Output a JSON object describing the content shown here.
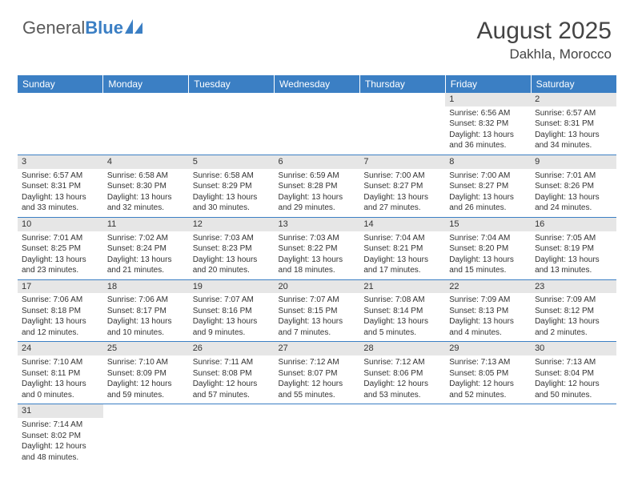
{
  "logo": {
    "text1": "General",
    "text2": "Blue",
    "sail_color": "#3b7fc4",
    "text_color": "#5a5a5a"
  },
  "title": "August 2025",
  "location": "Dakhla, Morocco",
  "colors": {
    "header_bg": "#3b7fc4",
    "header_text": "#ffffff",
    "daynum_bg": "#e6e6e6",
    "border": "#3b7fc4",
    "body_text": "#333333"
  },
  "day_headers": [
    "Sunday",
    "Monday",
    "Tuesday",
    "Wednesday",
    "Thursday",
    "Friday",
    "Saturday"
  ],
  "weeks": [
    [
      null,
      null,
      null,
      null,
      null,
      {
        "n": "1",
        "sr": "Sunrise: 6:56 AM",
        "ss": "Sunset: 8:32 PM",
        "d1": "Daylight: 13 hours",
        "d2": "and 36 minutes."
      },
      {
        "n": "2",
        "sr": "Sunrise: 6:57 AM",
        "ss": "Sunset: 8:31 PM",
        "d1": "Daylight: 13 hours",
        "d2": "and 34 minutes."
      }
    ],
    [
      {
        "n": "3",
        "sr": "Sunrise: 6:57 AM",
        "ss": "Sunset: 8:31 PM",
        "d1": "Daylight: 13 hours",
        "d2": "and 33 minutes."
      },
      {
        "n": "4",
        "sr": "Sunrise: 6:58 AM",
        "ss": "Sunset: 8:30 PM",
        "d1": "Daylight: 13 hours",
        "d2": "and 32 minutes."
      },
      {
        "n": "5",
        "sr": "Sunrise: 6:58 AM",
        "ss": "Sunset: 8:29 PM",
        "d1": "Daylight: 13 hours",
        "d2": "and 30 minutes."
      },
      {
        "n": "6",
        "sr": "Sunrise: 6:59 AM",
        "ss": "Sunset: 8:28 PM",
        "d1": "Daylight: 13 hours",
        "d2": "and 29 minutes."
      },
      {
        "n": "7",
        "sr": "Sunrise: 7:00 AM",
        "ss": "Sunset: 8:27 PM",
        "d1": "Daylight: 13 hours",
        "d2": "and 27 minutes."
      },
      {
        "n": "8",
        "sr": "Sunrise: 7:00 AM",
        "ss": "Sunset: 8:27 PM",
        "d1": "Daylight: 13 hours",
        "d2": "and 26 minutes."
      },
      {
        "n": "9",
        "sr": "Sunrise: 7:01 AM",
        "ss": "Sunset: 8:26 PM",
        "d1": "Daylight: 13 hours",
        "d2": "and 24 minutes."
      }
    ],
    [
      {
        "n": "10",
        "sr": "Sunrise: 7:01 AM",
        "ss": "Sunset: 8:25 PM",
        "d1": "Daylight: 13 hours",
        "d2": "and 23 minutes."
      },
      {
        "n": "11",
        "sr": "Sunrise: 7:02 AM",
        "ss": "Sunset: 8:24 PM",
        "d1": "Daylight: 13 hours",
        "d2": "and 21 minutes."
      },
      {
        "n": "12",
        "sr": "Sunrise: 7:03 AM",
        "ss": "Sunset: 8:23 PM",
        "d1": "Daylight: 13 hours",
        "d2": "and 20 minutes."
      },
      {
        "n": "13",
        "sr": "Sunrise: 7:03 AM",
        "ss": "Sunset: 8:22 PM",
        "d1": "Daylight: 13 hours",
        "d2": "and 18 minutes."
      },
      {
        "n": "14",
        "sr": "Sunrise: 7:04 AM",
        "ss": "Sunset: 8:21 PM",
        "d1": "Daylight: 13 hours",
        "d2": "and 17 minutes."
      },
      {
        "n": "15",
        "sr": "Sunrise: 7:04 AM",
        "ss": "Sunset: 8:20 PM",
        "d1": "Daylight: 13 hours",
        "d2": "and 15 minutes."
      },
      {
        "n": "16",
        "sr": "Sunrise: 7:05 AM",
        "ss": "Sunset: 8:19 PM",
        "d1": "Daylight: 13 hours",
        "d2": "and 13 minutes."
      }
    ],
    [
      {
        "n": "17",
        "sr": "Sunrise: 7:06 AM",
        "ss": "Sunset: 8:18 PM",
        "d1": "Daylight: 13 hours",
        "d2": "and 12 minutes."
      },
      {
        "n": "18",
        "sr": "Sunrise: 7:06 AM",
        "ss": "Sunset: 8:17 PM",
        "d1": "Daylight: 13 hours",
        "d2": "and 10 minutes."
      },
      {
        "n": "19",
        "sr": "Sunrise: 7:07 AM",
        "ss": "Sunset: 8:16 PM",
        "d1": "Daylight: 13 hours",
        "d2": "and 9 minutes."
      },
      {
        "n": "20",
        "sr": "Sunrise: 7:07 AM",
        "ss": "Sunset: 8:15 PM",
        "d1": "Daylight: 13 hours",
        "d2": "and 7 minutes."
      },
      {
        "n": "21",
        "sr": "Sunrise: 7:08 AM",
        "ss": "Sunset: 8:14 PM",
        "d1": "Daylight: 13 hours",
        "d2": "and 5 minutes."
      },
      {
        "n": "22",
        "sr": "Sunrise: 7:09 AM",
        "ss": "Sunset: 8:13 PM",
        "d1": "Daylight: 13 hours",
        "d2": "and 4 minutes."
      },
      {
        "n": "23",
        "sr": "Sunrise: 7:09 AM",
        "ss": "Sunset: 8:12 PM",
        "d1": "Daylight: 13 hours",
        "d2": "and 2 minutes."
      }
    ],
    [
      {
        "n": "24",
        "sr": "Sunrise: 7:10 AM",
        "ss": "Sunset: 8:11 PM",
        "d1": "Daylight: 13 hours",
        "d2": "and 0 minutes."
      },
      {
        "n": "25",
        "sr": "Sunrise: 7:10 AM",
        "ss": "Sunset: 8:09 PM",
        "d1": "Daylight: 12 hours",
        "d2": "and 59 minutes."
      },
      {
        "n": "26",
        "sr": "Sunrise: 7:11 AM",
        "ss": "Sunset: 8:08 PM",
        "d1": "Daylight: 12 hours",
        "d2": "and 57 minutes."
      },
      {
        "n": "27",
        "sr": "Sunrise: 7:12 AM",
        "ss": "Sunset: 8:07 PM",
        "d1": "Daylight: 12 hours",
        "d2": "and 55 minutes."
      },
      {
        "n": "28",
        "sr": "Sunrise: 7:12 AM",
        "ss": "Sunset: 8:06 PM",
        "d1": "Daylight: 12 hours",
        "d2": "and 53 minutes."
      },
      {
        "n": "29",
        "sr": "Sunrise: 7:13 AM",
        "ss": "Sunset: 8:05 PM",
        "d1": "Daylight: 12 hours",
        "d2": "and 52 minutes."
      },
      {
        "n": "30",
        "sr": "Sunrise: 7:13 AM",
        "ss": "Sunset: 8:04 PM",
        "d1": "Daylight: 12 hours",
        "d2": "and 50 minutes."
      }
    ],
    [
      {
        "n": "31",
        "sr": "Sunrise: 7:14 AM",
        "ss": "Sunset: 8:02 PM",
        "d1": "Daylight: 12 hours",
        "d2": "and 48 minutes."
      },
      null,
      null,
      null,
      null,
      null,
      null
    ]
  ]
}
